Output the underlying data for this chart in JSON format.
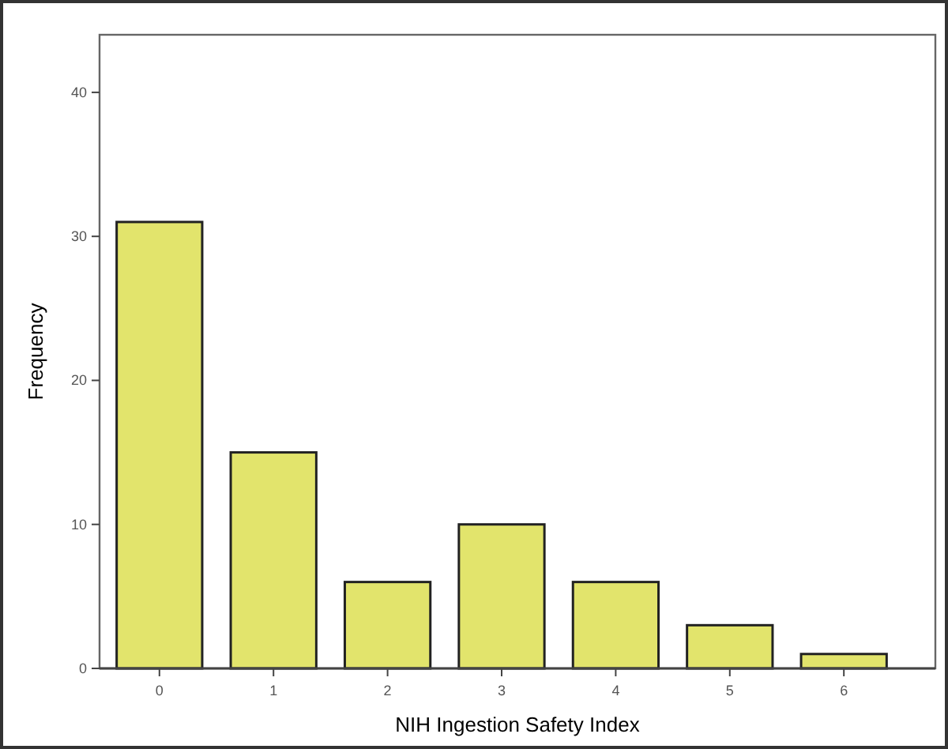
{
  "chart_data": {
    "type": "bar",
    "xlabel": "NIH Ingestion Safety Index",
    "ylabel": "Frequency",
    "categories": [
      "0",
      "1",
      "2",
      "3",
      "4",
      "5",
      "6"
    ],
    "values": [
      31,
      15,
      6,
      10,
      6,
      3,
      1
    ],
    "color": "#e2e46c",
    "ylim": [
      0,
      44
    ],
    "yticks": [
      0,
      10,
      20,
      30,
      40
    ],
    "grid": false
  }
}
